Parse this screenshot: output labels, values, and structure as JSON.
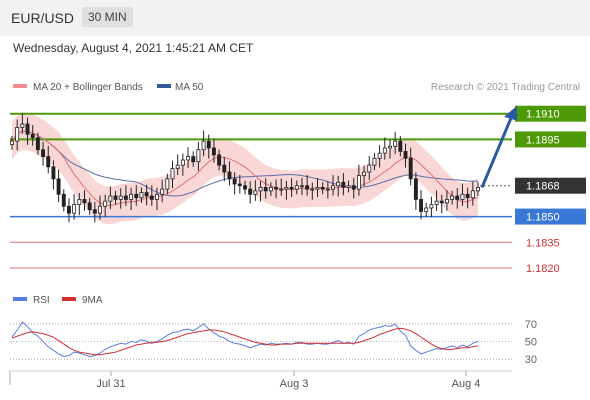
{
  "header": {
    "pair": "EUR/USD",
    "timeframe": "30 MIN",
    "datetime": "Wednesday, August 4, 2021 1:45:21 AM CET"
  },
  "colors": {
    "resistance": "#4e9a06",
    "support": "#3a78d8",
    "target": "#e07070",
    "current": "#333333",
    "bollinger": "#f7c9c9",
    "ma20": "#e07070",
    "ma50": "#5a6ea8",
    "rsi": "#5a7de0",
    "rsi_ma": "#d23030",
    "arrow": "#2a5aa0"
  },
  "chart_data": [
    {
      "type": "candlestick",
      "legend": [
        {
          "label": "MA 20 + Bollinger Bands",
          "color": "#f08c8c"
        },
        {
          "label": "MA 50",
          "color": "#335b9c"
        }
      ],
      "credit": "Research © 2021 Trading Central",
      "ylim": [
        1.1813,
        1.1918
      ],
      "price_levels": [
        {
          "value": 1.191,
          "label": "1.1910",
          "kind": "resistance"
        },
        {
          "value": 1.1895,
          "label": "1.1895",
          "kind": "resistance"
        },
        {
          "value": 1.1868,
          "label": "1.1868",
          "kind": "current"
        },
        {
          "value": 1.185,
          "label": "1.1850",
          "kind": "support"
        },
        {
          "value": 1.1835,
          "label": "1.1835",
          "kind": "target"
        },
        {
          "value": 1.182,
          "label": "1.1820",
          "kind": "target"
        }
      ],
      "forecast_arrow": {
        "from": 1.1867,
        "to": 1.191
      },
      "close_series": [
        1.1894,
        1.1902,
        1.1904,
        1.1898,
        1.1896,
        1.1889,
        1.1885,
        1.1879,
        1.1872,
        1.1863,
        1.1856,
        1.1852,
        1.1857,
        1.186,
        1.1858,
        1.1854,
        1.1852,
        1.1856,
        1.1859,
        1.1862,
        1.186,
        1.1862,
        1.186,
        1.1863,
        1.1861,
        1.1864,
        1.1862,
        1.186,
        1.1863,
        1.1866,
        1.1872,
        1.1878,
        1.188,
        1.1883,
        1.1885,
        1.1882,
        1.1889,
        1.1894,
        1.189,
        1.1886,
        1.188,
        1.1876,
        1.1872,
        1.1869,
        1.1868,
        1.1866,
        1.1863,
        1.1865,
        1.1867,
        1.1865,
        1.1867,
        1.1866,
        1.1866,
        1.1867,
        1.1866,
        1.1868,
        1.1868,
        1.1866,
        1.1866,
        1.1867,
        1.1866,
        1.1866,
        1.1868,
        1.187,
        1.1867,
        1.1868,
        1.1866,
        1.1874,
        1.1876,
        1.188,
        1.1884,
        1.1887,
        1.189,
        1.1891,
        1.1894,
        1.1888,
        1.1884,
        1.1872,
        1.186,
        1.1853,
        1.1855,
        1.1857,
        1.1859,
        1.1858,
        1.186,
        1.1862,
        1.186,
        1.1863,
        1.1861,
        1.1865,
        1.1867
      ],
      "x_ticks": [
        "Jul 31",
        "Aug 3",
        "Aug 4"
      ]
    },
    {
      "type": "line",
      "legend": [
        {
          "label": "RSI",
          "color": "#5a7de0"
        },
        {
          "label": "9MA",
          "color": "#d23030"
        }
      ],
      "ylim": [
        20,
        80
      ],
      "y_ticks": [
        70,
        50,
        30
      ],
      "series": [
        {
          "name": "RSI",
          "values": [
            55,
            63,
            72,
            67,
            60,
            56,
            50,
            44,
            40,
            36,
            33,
            34,
            38,
            37,
            35,
            33,
            34,
            37,
            41,
            44,
            46,
            48,
            47,
            50,
            49,
            52,
            50,
            48,
            50,
            53,
            57,
            60,
            61,
            63,
            64,
            62,
            66,
            70,
            64,
            60,
            56,
            54,
            50,
            48,
            47,
            45,
            43,
            45,
            47,
            46,
            48,
            47,
            47,
            48,
            47,
            49,
            49,
            47,
            47,
            48,
            47,
            47,
            49,
            51,
            48,
            49,
            47,
            56,
            59,
            63,
            65,
            66,
            68,
            67,
            70,
            62,
            57,
            45,
            40,
            36,
            38,
            40,
            42,
            41,
            43,
            45,
            43,
            46,
            44,
            48,
            50
          ]
        },
        {
          "name": "9MA",
          "values": [
            54,
            56,
            58,
            60,
            61,
            60,
            59,
            57,
            55,
            51,
            47,
            43,
            40,
            38,
            37,
            36,
            35,
            35,
            36,
            37,
            38,
            40,
            42,
            44,
            46,
            47,
            48,
            49,
            49,
            50,
            51,
            53,
            55,
            57,
            59,
            60,
            61,
            62,
            63,
            63,
            62,
            61,
            59,
            57,
            55,
            53,
            51,
            49,
            48,
            47,
            46,
            46,
            47,
            47,
            47,
            48,
            48,
            48,
            48,
            48,
            48,
            48,
            48,
            48,
            48,
            48,
            48,
            49,
            51,
            53,
            55,
            58,
            60,
            62,
            64,
            65,
            64,
            62,
            59,
            55,
            51,
            47,
            44,
            42,
            41,
            41,
            42,
            43,
            43,
            44,
            45
          ]
        }
      ]
    }
  ]
}
